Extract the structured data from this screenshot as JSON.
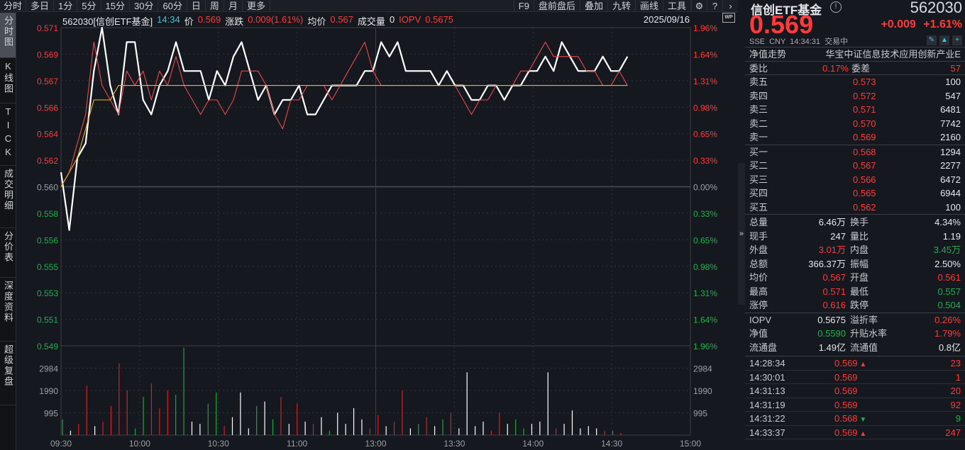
{
  "topbar": {
    "tabs": [
      "分时",
      "多日",
      "1分",
      "5分",
      "15分",
      "30分",
      "60分",
      "日",
      "周",
      "月",
      "更多"
    ],
    "right_tabs": [
      "F9",
      "盘前盘后",
      "叠加",
      "九转",
      "画线",
      "工具"
    ],
    "icons": [
      "gear-icon",
      "help-icon",
      "chevron-right-icon"
    ]
  },
  "leftnav": {
    "items": [
      {
        "label": "分时图",
        "active": true
      },
      {
        "label": "K线图",
        "active": false
      },
      {
        "label": "TICK",
        "active": false
      },
      {
        "label": "成交明细",
        "active": false
      },
      {
        "label": "分价表",
        "active": false
      },
      {
        "label": "深度资料",
        "active": false
      },
      {
        "label": "超级复盘",
        "active": false
      }
    ]
  },
  "infobar": {
    "symbol": "562030[信创ETF基金]",
    "time": "14:34",
    "price_label": "价",
    "price": "0.569",
    "change_label": "涨跌",
    "change": "0.009(1.61%)",
    "avg_label": "均价",
    "avg": "0.567",
    "volume_label": "成交量",
    "volume": "0",
    "iopv_label": "IOPV",
    "iopv": "0.5675",
    "date": "2025/09/16",
    "wp_badge": "WP"
  },
  "chart_data": {
    "type": "line",
    "title": "562030 信创ETF基金 分时图",
    "xlabel": "",
    "ylabel": "价格",
    "x_ticks": [
      "09:30",
      "10:00",
      "10:30",
      "11:00",
      "13:00",
      "13:30",
      "14:00",
      "14:30",
      "15:00"
    ],
    "y_ticks_left": [
      "0.571",
      "0.569",
      "0.567",
      "0.566",
      "0.564",
      "0.562",
      "0.560",
      "0.558",
      "0.556",
      "0.555",
      "0.553",
      "0.551",
      "0.549"
    ],
    "y_ticks_right": [
      "1.96%",
      "1.64%",
      "1.31%",
      "0.98%",
      "0.65%",
      "0.33%",
      "0.00%",
      "0.33%",
      "0.65%",
      "0.98%",
      "1.31%",
      "1.64%",
      "1.96%"
    ],
    "ylim": [
      0.549,
      0.571
    ],
    "prev_close": 0.56,
    "volume_ticks": [
      "2984",
      "1990",
      "995"
    ],
    "volume_ylim": [
      0,
      3980
    ],
    "series": [
      {
        "name": "价格",
        "color": "#ffffff",
        "values": [
          0.561,
          0.557,
          0.562,
          0.563,
          0.568,
          0.571,
          0.567,
          0.565,
          0.57,
          0.57,
          0.566,
          0.565,
          0.567,
          0.568,
          0.57,
          0.568,
          0.568,
          0.568,
          0.566,
          0.568,
          0.567,
          0.569,
          0.57,
          0.568,
          0.566,
          0.567,
          0.565,
          0.566,
          0.566,
          0.567,
          0.565,
          0.565,
          0.566,
          0.567,
          0.567,
          0.567,
          0.567,
          0.568,
          0.568,
          0.57,
          0.569,
          0.57,
          0.568,
          0.568,
          0.568,
          0.568,
          0.567,
          0.568,
          0.567,
          0.567,
          0.566,
          0.566,
          0.567,
          0.567,
          0.566,
          0.567,
          0.567,
          0.568,
          0.568,
          0.569,
          0.568,
          0.57,
          0.569,
          0.568,
          0.568,
          0.568,
          0.569,
          0.568,
          0.568,
          0.569
        ]
      },
      {
        "name": "IOPV",
        "color": "#e84a4a",
        "values": [
          0.56,
          0.561,
          0.563,
          0.565,
          0.57,
          0.567,
          0.566,
          0.565,
          0.568,
          0.567,
          0.568,
          0.566,
          0.568,
          0.567,
          0.569,
          0.567,
          0.566,
          0.565,
          0.566,
          0.566,
          0.565,
          0.566,
          0.568,
          0.568,
          0.568,
          0.567,
          0.565,
          0.564,
          0.566,
          0.566,
          0.567,
          0.567,
          0.567,
          0.566,
          0.567,
          0.568,
          0.569,
          0.57,
          0.568,
          0.567,
          0.567,
          0.567,
          0.567,
          0.567,
          0.567,
          0.567,
          0.567,
          0.567,
          0.567,
          0.566,
          0.565,
          0.566,
          0.566,
          0.567,
          0.567,
          0.567,
          0.568,
          0.568,
          0.569,
          0.57,
          0.569,
          0.569,
          0.569,
          0.569,
          0.568,
          0.568,
          0.567,
          0.567,
          0.568,
          0.567
        ]
      },
      {
        "name": "均价",
        "color": "#f0b429",
        "values": [
          0.56,
          0.561,
          0.562,
          0.564,
          0.566,
          0.566,
          0.566,
          0.567,
          0.567,
          0.567,
          0.567,
          0.567,
          0.567,
          0.567,
          0.567,
          0.567,
          0.567,
          0.567,
          0.567,
          0.567,
          0.567,
          0.567,
          0.567,
          0.567,
          0.567,
          0.567,
          0.567,
          0.567,
          0.567,
          0.567,
          0.567,
          0.567,
          0.567,
          0.567,
          0.567,
          0.567,
          0.567,
          0.567,
          0.567,
          0.567,
          0.567,
          0.567,
          0.567,
          0.567,
          0.567,
          0.567,
          0.567,
          0.567,
          0.567,
          0.567,
          0.567,
          0.567,
          0.567,
          0.567,
          0.567,
          0.567,
          0.567,
          0.567,
          0.567,
          0.567,
          0.567,
          0.567,
          0.567,
          0.567,
          0.567,
          0.567,
          0.567,
          0.567,
          0.567,
          0.567
        ]
      }
    ],
    "legend_position": "none",
    "grid": true
  },
  "quote": {
    "name": "信创ETF基金",
    "code": "562030",
    "price": "0.569",
    "change": "+0.009",
    "change_pct": "+1.61%",
    "exchange": "SSE",
    "currency": "CNY",
    "time": "14:34:31",
    "status": "交易中",
    "nav_trend_label": "净值走势",
    "index_name": "华宝中证信息技术应用创新产业E",
    "weibi_label": "委比",
    "weibi": "0.17%",
    "weicha_label": "委差",
    "weicha": "57"
  },
  "orderbook": {
    "asks": [
      {
        "label": "卖五",
        "price": "0.573",
        "vol": "100"
      },
      {
        "label": "卖四",
        "price": "0.572",
        "vol": "547"
      },
      {
        "label": "卖三",
        "price": "0.571",
        "vol": "6481"
      },
      {
        "label": "卖二",
        "price": "0.570",
        "vol": "7742"
      },
      {
        "label": "卖一",
        "price": "0.569",
        "vol": "2160"
      }
    ],
    "bids": [
      {
        "label": "买一",
        "price": "0.568",
        "vol": "1294"
      },
      {
        "label": "买二",
        "price": "0.567",
        "vol": "2277"
      },
      {
        "label": "买三",
        "price": "0.566",
        "vol": "6472"
      },
      {
        "label": "买四",
        "price": "0.565",
        "vol": "6944"
      },
      {
        "label": "买五",
        "price": "0.562",
        "vol": "100"
      }
    ]
  },
  "stats": [
    {
      "l": "总量",
      "v": "6.46万",
      "vc": "white",
      "l2": "换手",
      "v2": "4.34%",
      "v2c": "white"
    },
    {
      "l": "现手",
      "v": "247",
      "vc": "white",
      "l2": "量比",
      "v2": "1.19",
      "v2c": "white"
    },
    {
      "l": "外盘",
      "v": "3.01万",
      "vc": "red",
      "l2": "内盘",
      "v2": "3.45万",
      "v2c": "green"
    },
    {
      "l": "总额",
      "v": "366.37万",
      "vc": "white",
      "l2": "振幅",
      "v2": "2.50%",
      "v2c": "white"
    },
    {
      "l": "均价",
      "v": "0.567",
      "vc": "red",
      "l2": "开盘",
      "v2": "0.561",
      "v2c": "red"
    },
    {
      "l": "最高",
      "v": "0.571",
      "vc": "red",
      "l2": "最低",
      "v2": "0.557",
      "v2c": "green"
    },
    {
      "l": "涨停",
      "v": "0.616",
      "vc": "red",
      "l2": "跌停",
      "v2": "0.504",
      "v2c": "green"
    }
  ],
  "etf_stats": [
    {
      "l": "IOPV",
      "v": "0.5675",
      "vc": "white",
      "l2": "溢折率",
      "v2": "0.26%",
      "v2c": "red"
    },
    {
      "l": "净值",
      "v": "0.5590",
      "vc": "green",
      "l2": "升贴水率",
      "v2": "1.79%",
      "v2c": "red"
    },
    {
      "l": "流通盘",
      "v": "1.49亿",
      "vc": "white",
      "l2": "流通值",
      "v2": "0.8亿",
      "v2c": "white"
    }
  ],
  "ticks": [
    {
      "time": "14:28:34",
      "price": "0.569",
      "dir": "up",
      "qty": "23",
      "qc": "red"
    },
    {
      "time": "14:30:01",
      "price": "0.569",
      "dir": "",
      "qty": "1",
      "qc": "red"
    },
    {
      "time": "14:31:13",
      "price": "0.569",
      "dir": "",
      "qty": "20",
      "qc": "red"
    },
    {
      "time": "14:31:19",
      "price": "0.569",
      "dir": "",
      "qty": "92",
      "qc": "red"
    },
    {
      "time": "14:31:22",
      "price": "0.568",
      "dir": "down",
      "qty": "9",
      "qc": "green"
    },
    {
      "time": "14:33:37",
      "price": "0.569",
      "dir": "up",
      "qty": "247",
      "qc": "red"
    }
  ],
  "colors": {
    "up": "#ff3a3a",
    "down": "#19b34a",
    "price_line": "#ffffff",
    "iopv_line": "#e84a4a",
    "avg_line": "#f0b429",
    "bg": "#15181e"
  }
}
